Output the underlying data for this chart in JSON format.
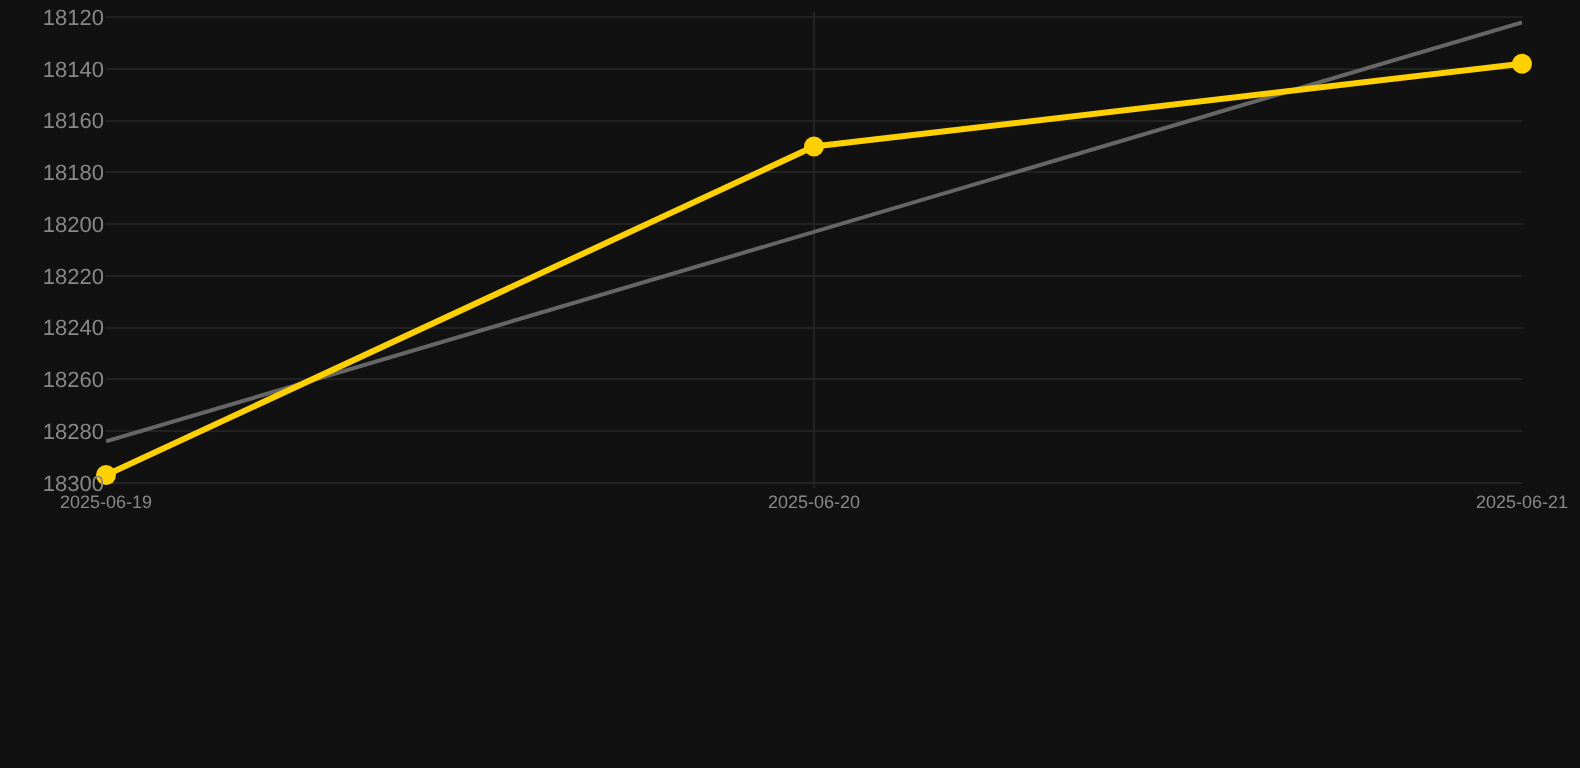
{
  "chart_data": {
    "type": "line",
    "x": [
      "2025-06-19",
      "2025-06-20",
      "2025-06-21"
    ],
    "series": [
      {
        "color": "#ffd000",
        "values": [
          18297,
          18170,
          18138
        ],
        "marker": "circle"
      },
      {
        "type": "line",
        "color": "#666666",
        "x": [
          "2025-06-19",
          "2025-06-21"
        ],
        "values": [
          18284,
          18122
        ],
        "marker": "none"
      }
    ],
    "xlim": [
      "2025-06-19",
      "2025-06-21"
    ],
    "xticks": [
      "2025-06-19",
      "2025-06-20",
      "2025-06-21"
    ],
    "ylim": [
      18302,
      18118
    ],
    "yticks": [
      18120,
      18140,
      18160,
      18180,
      18200,
      18220,
      18240,
      18260,
      18280,
      18300
    ],
    "grid": true
  }
}
